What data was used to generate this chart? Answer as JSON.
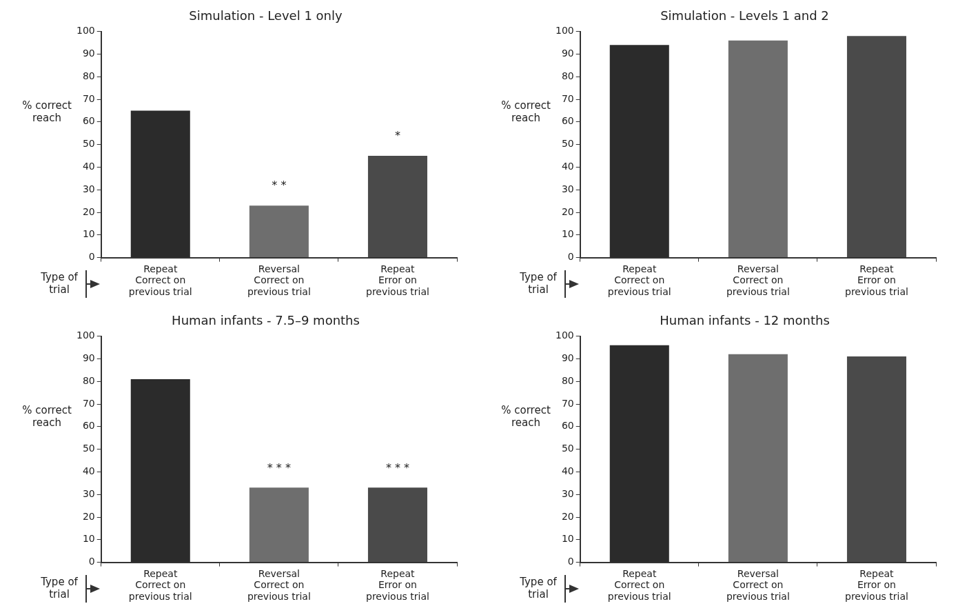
{
  "chart_data": [
    {
      "type": "bar",
      "title": "Simulation - Level 1 only",
      "ylabel": "% correct reach",
      "xlabel": "Type of trial",
      "categories": [
        "Repeat\nCorrect on\nprevious trial",
        "Reversal\nCorrect on\nprevious trial",
        "Repeat\nError on\nprevious trial"
      ],
      "values": [
        65,
        23,
        45
      ],
      "colors": [
        "#2b2b2b",
        "#6e6e6e",
        "#4a4a4a"
      ],
      "ylim": [
        0,
        100
      ],
      "yticks": [
        0,
        10,
        20,
        30,
        40,
        50,
        60,
        70,
        80,
        90,
        100
      ],
      "grid": false,
      "annotations": [
        {
          "text": "* *",
          "x": "Reversal\nCorrect on\nprevious trial",
          "y": 23
        },
        {
          "text": "*",
          "x": "Repeat\nError on\nprevious trial",
          "y": 45
        }
      ]
    },
    {
      "type": "bar",
      "title": "Simulation - Levels 1 and 2",
      "ylabel": "% correct reach",
      "xlabel": "Type of trial",
      "categories": [
        "Repeat\nCorrect on\nprevious trial",
        "Reversal\nCorrect on\nprevious trial",
        "Repeat\nError on\nprevious trial"
      ],
      "values": [
        94,
        96,
        98
      ],
      "colors": [
        "#2b2b2b",
        "#6e6e6e",
        "#4a4a4a"
      ],
      "ylim": [
        0,
        100
      ],
      "yticks": [
        0,
        10,
        20,
        30,
        40,
        50,
        60,
        70,
        80,
        90,
        100
      ],
      "grid": false
    },
    {
      "type": "bar",
      "title": "Human infants - 7.5–9 months",
      "ylabel": "% correct reach",
      "xlabel": "Type of trial",
      "categories": [
        "Repeat\nCorrect on\nprevious trial",
        "Reversal\nCorrect on\nprevious trial",
        "Repeat\nError on\nprevious trial"
      ],
      "values": [
        81,
        33,
        33
      ],
      "colors": [
        "#2b2b2b",
        "#6e6e6e",
        "#4a4a4a"
      ],
      "ylim": [
        0,
        100
      ],
      "yticks": [
        0,
        10,
        20,
        30,
        40,
        50,
        60,
        70,
        80,
        90,
        100
      ],
      "grid": false,
      "annotations": [
        {
          "text": "* * *",
          "x": "Reversal\nCorrect on\nprevious trial",
          "y": 33
        },
        {
          "text": "* * *",
          "x": "Repeat\nError on\nprevious trial",
          "y": 33
        }
      ]
    },
    {
      "type": "bar",
      "title": "Human infants - 12 months",
      "ylabel": "% correct reach",
      "xlabel": "Type of trial",
      "categories": [
        "Repeat\nCorrect on\nprevious trial",
        "Reversal\nCorrect on\nprevious trial",
        "Repeat\nError on\nprevious trial"
      ],
      "values": [
        96,
        92,
        91
      ],
      "colors": [
        "#2b2b2b",
        "#6e6e6e",
        "#4a4a4a"
      ],
      "ylim": [
        0,
        100
      ],
      "yticks": [
        0,
        10,
        20,
        30,
        40,
        50,
        60,
        70,
        80,
        90,
        100
      ],
      "grid": false
    }
  ]
}
